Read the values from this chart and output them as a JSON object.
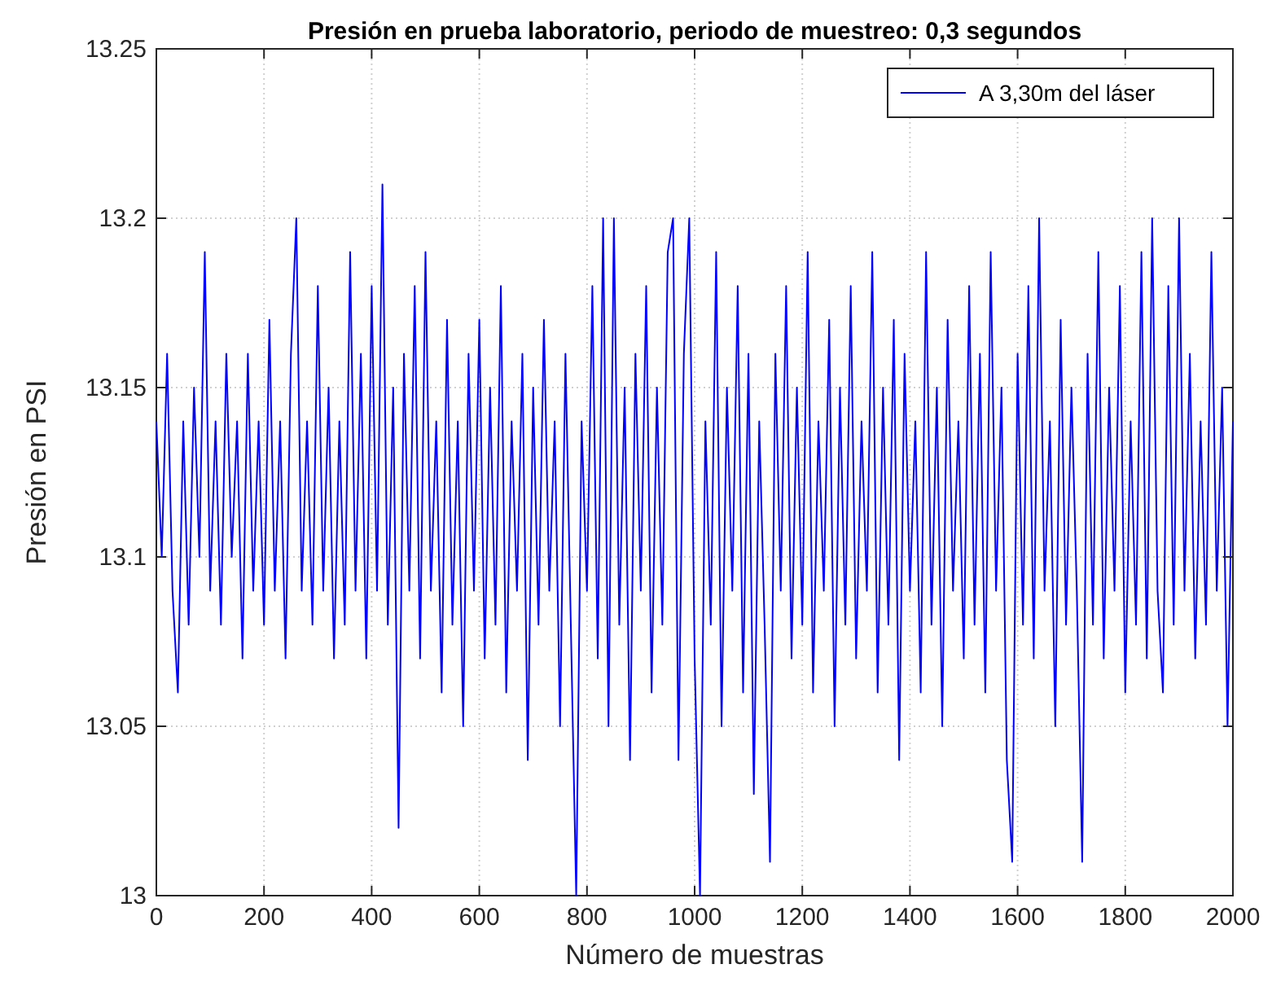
{
  "chart_data": {
    "type": "line",
    "title": "Presión en prueba laboratorio, periodo de muestreo: 0,3 segundos",
    "xlabel": "Número de muestras",
    "ylabel": "Presión en PSI",
    "xlim": [
      0,
      2000
    ],
    "xticks": [
      0,
      200,
      400,
      600,
      800,
      1000,
      1200,
      1400,
      1600,
      1800,
      2000
    ],
    "ylim": [
      13,
      13.25
    ],
    "yticks": [
      13,
      13.05,
      13.1,
      13.15,
      13.2,
      13.25
    ],
    "grid": true,
    "legend": "top right",
    "x": [
      0,
      10,
      20,
      30,
      40,
      50,
      60,
      70,
      80,
      90,
      100,
      110,
      120,
      130,
      140,
      150,
      160,
      170,
      180,
      190,
      200,
      210,
      220,
      230,
      240,
      250,
      260,
      270,
      280,
      290,
      300,
      310,
      320,
      330,
      340,
      350,
      360,
      370,
      380,
      390,
      400,
      410,
      420,
      430,
      440,
      450,
      460,
      470,
      480,
      490,
      500,
      510,
      520,
      530,
      540,
      550,
      560,
      570,
      580,
      590,
      600,
      610,
      620,
      630,
      640,
      650,
      660,
      670,
      680,
      690,
      700,
      710,
      720,
      730,
      740,
      750,
      760,
      770,
      780,
      790,
      800,
      810,
      820,
      830,
      840,
      850,
      860,
      870,
      880,
      890,
      900,
      910,
      920,
      930,
      940,
      950,
      960,
      970,
      980,
      990,
      1000,
      1010,
      1020,
      1030,
      1040,
      1050,
      1060,
      1070,
      1080,
      1090,
      1100,
      1110,
      1120,
      1130,
      1140,
      1150,
      1160,
      1170,
      1180,
      1190,
      1200,
      1210,
      1220,
      1230,
      1240,
      1250,
      1260,
      1270,
      1280,
      1290,
      1300,
      1310,
      1320,
      1330,
      1340,
      1350,
      1360,
      1370,
      1380,
      1390,
      1400,
      1410,
      1420,
      1430,
      1440,
      1450,
      1460,
      1470,
      1480,
      1490,
      1500,
      1510,
      1520,
      1530,
      1540,
      1550,
      1560,
      1570,
      1580,
      1590,
      1600,
      1610,
      1620,
      1630,
      1640,
      1650,
      1660,
      1670,
      1680,
      1690,
      1700,
      1710,
      1720,
      1730,
      1740,
      1750,
      1760,
      1770,
      1780,
      1790,
      1800,
      1810,
      1820,
      1830,
      1840,
      1850,
      1860,
      1870,
      1880,
      1890,
      1900,
      1910,
      1920,
      1930,
      1940,
      1950,
      1960,
      1970,
      1980,
      1990,
      2000
    ],
    "series": [
      {
        "name": "A 3,30m del láser",
        "color": "#0000ff",
        "values": [
          13.14,
          13.1,
          13.16,
          13.09,
          13.06,
          13.14,
          13.08,
          13.15,
          13.1,
          13.19,
          13.09,
          13.14,
          13.08,
          13.16,
          13.1,
          13.14,
          13.07,
          13.16,
          13.09,
          13.14,
          13.08,
          13.17,
          13.09,
          13.14,
          13.07,
          13.16,
          13.2,
          13.09,
          13.14,
          13.08,
          13.18,
          13.09,
          13.15,
          13.07,
          13.14,
          13.08,
          13.19,
          13.09,
          13.16,
          13.07,
          13.18,
          13.09,
          13.21,
          13.08,
          13.15,
          13.02,
          13.16,
          13.09,
          13.18,
          13.07,
          13.19,
          13.09,
          13.14,
          13.06,
          13.17,
          13.08,
          13.14,
          13.05,
          13.16,
          13.09,
          13.17,
          13.07,
          13.15,
          13.08,
          13.18,
          13.06,
          13.14,
          13.09,
          13.16,
          13.04,
          13.15,
          13.08,
          13.17,
          13.09,
          13.14,
          13.05,
          13.16,
          13.08,
          13.0,
          13.14,
          13.09,
          13.18,
          13.07,
          13.2,
          13.05,
          13.2,
          13.08,
          13.15,
          13.04,
          13.16,
          13.09,
          13.18,
          13.06,
          13.15,
          13.08,
          13.19,
          13.2,
          13.04,
          13.16,
          13.2,
          13.07,
          13.0,
          13.14,
          13.08,
          13.19,
          13.05,
          13.15,
          13.09,
          13.18,
          13.06,
          13.16,
          13.03,
          13.14,
          13.08,
          13.01,
          13.16,
          13.09,
          13.18,
          13.07,
          13.15,
          13.08,
          13.19,
          13.06,
          13.14,
          13.09,
          13.17,
          13.05,
          13.15,
          13.08,
          13.18,
          13.07,
          13.14,
          13.09,
          13.19,
          13.06,
          13.15,
          13.08,
          13.17,
          13.04,
          13.16,
          13.09,
          13.14,
          13.06,
          13.19,
          13.08,
          13.15,
          13.05,
          13.17,
          13.09,
          13.14,
          13.07,
          13.18,
          13.08,
          13.16,
          13.06,
          13.19,
          13.09,
          13.15,
          13.04,
          13.01,
          13.16,
          13.08,
          13.18,
          13.07,
          13.2,
          13.09,
          13.14,
          13.05,
          13.17,
          13.08,
          13.15,
          13.09,
          13.01,
          13.16,
          13.08,
          13.19,
          13.07,
          13.15,
          13.09,
          13.18,
          13.06,
          13.14,
          13.08,
          13.19,
          13.07,
          13.2,
          13.09,
          13.06,
          13.18,
          13.08,
          13.2,
          13.09,
          13.16,
          13.07,
          13.14,
          13.08,
          13.19,
          13.09,
          13.15,
          13.05,
          13.14
        ]
      }
    ]
  }
}
